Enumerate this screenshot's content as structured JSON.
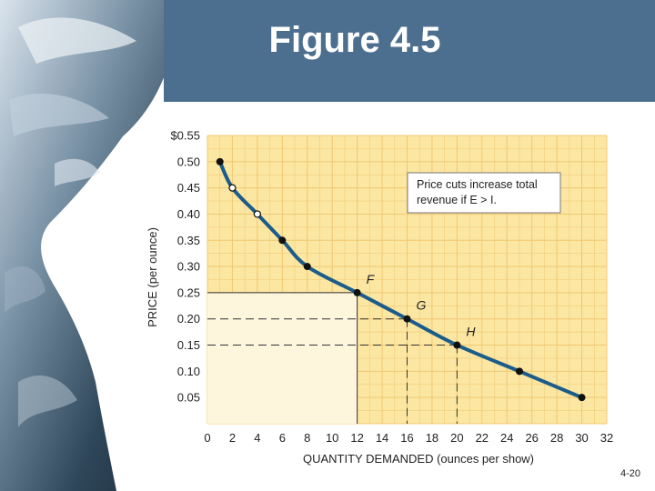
{
  "slide": {
    "title": "Figure 4.5",
    "slide_number": "4-20"
  },
  "colors": {
    "header": "#4d6f8f",
    "plot_background": "#fbe6a2",
    "grid": "#f1c872",
    "curve": "#1c5c8a",
    "shaded_area": "#fdf5dc"
  },
  "chart_data": {
    "type": "line",
    "title": "",
    "xlabel": "QUANTITY DEMANDED (ounces per show)",
    "ylabel": "PRICE (per ounce)",
    "xlim": [
      0,
      32
    ],
    "ylim": [
      0,
      0.55
    ],
    "x_ticks": [
      "0",
      "2",
      "4",
      "6",
      "8",
      "10",
      "12",
      "14",
      "16",
      "18",
      "20",
      "22",
      "24",
      "26",
      "28",
      "30",
      "32"
    ],
    "y_ticks": [
      "$0.55",
      "0.50",
      "0.45",
      "0.40",
      "0.35",
      "0.30",
      "0.25",
      "0.20",
      "0.15",
      "0.10",
      "0.05"
    ],
    "grid": true,
    "series": [
      {
        "x": [
          1,
          2,
          4,
          6,
          8,
          12,
          16,
          20,
          25,
          30
        ],
        "y": [
          0.5,
          0.45,
          0.4,
          0.35,
          0.3,
          0.25,
          0.2,
          0.15,
          0.1,
          0.05
        ],
        "markers": [
          "filled",
          "open",
          "open",
          "filled",
          "filled",
          "filled",
          "filled",
          "filled",
          "filled",
          "filled"
        ]
      }
    ],
    "point_labels": [
      {
        "text": "F",
        "x": 12,
        "y": 0.25
      },
      {
        "text": "G",
        "x": 16,
        "y": 0.2
      },
      {
        "text": "H",
        "x": 20,
        "y": 0.15
      }
    ],
    "annotation": {
      "line1": "Price cuts increase total",
      "line2": "revenue if E > I.",
      "placement": "top-right"
    }
  }
}
